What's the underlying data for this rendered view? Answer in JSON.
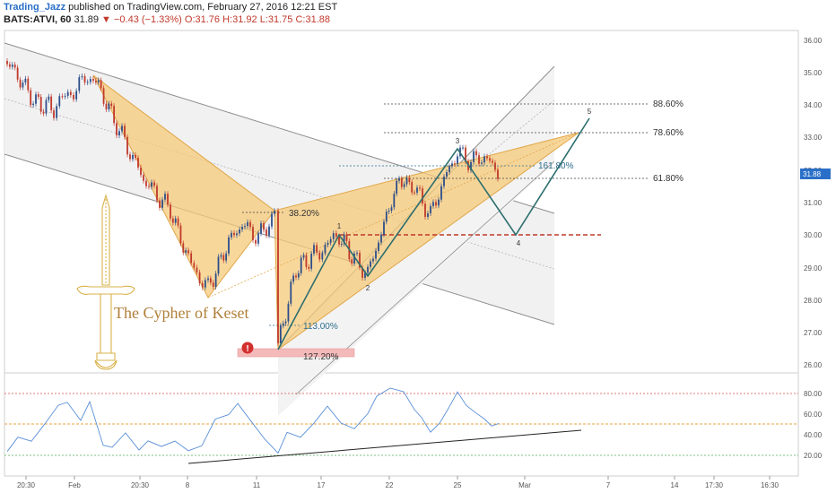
{
  "header": {
    "author": "Trading_Jazz",
    "published": "published on TradingView.com, February 27, 2016 12:21 EST",
    "symbol": "BATS:ATVI, 60",
    "last": "31.89",
    "change": "▼ −0.43 (−1.33%)",
    "open": "O:31.76",
    "high": "H:31.92",
    "low": "L:31.75",
    "close": "C:31.88"
  },
  "colors": {
    "harmonic_fill": "#f5c97a",
    "leg_line": "#2d6e6e",
    "channel": "#8e8e8e",
    "bull_candle": "#2d4e8a",
    "bear_candle": "#c0392b",
    "rsi_line": "#5b8fd6",
    "price_tag": "#2a6fc7"
  },
  "chart_data": {
    "type": "candlestick",
    "y_ticks": [
      "36.00",
      "35.00",
      "34.00",
      "33.00",
      "32.00",
      "31.00",
      "30.00",
      "29.00",
      "28.00",
      "27.00",
      "26.00"
    ],
    "x_ticks": [
      "20:30",
      "Feb",
      "20:30",
      "8",
      "11",
      "17",
      "22",
      "25",
      "Mar",
      "7",
      "14",
      "17:30",
      "16:30"
    ],
    "price_tag": "31.88",
    "rsi_ticks": [
      "80.00",
      "60.00",
      "40.00",
      "20.00"
    ],
    "fib_levels": [
      "88.60%",
      "78.60%",
      "161.80%",
      "61.80%",
      "38.20%",
      "113.00%",
      "127.20%"
    ],
    "points": [
      "1",
      "2",
      "3",
      "4",
      "5"
    ],
    "annotation": "The Cypher of Keset",
    "alert": "!"
  }
}
